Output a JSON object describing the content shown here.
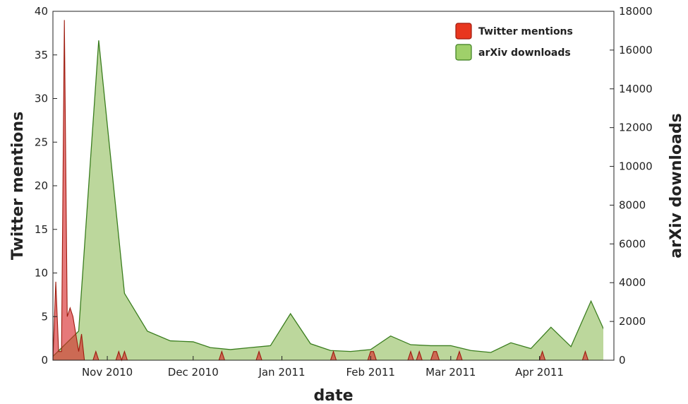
{
  "chart_data": {
    "type": "area",
    "x_axis": {
      "label": "date",
      "ticks": [
        "2010-11-01",
        "2010-12-01",
        "2011-01-01",
        "2011-02-01",
        "2011-03-01",
        "2011-04-01"
      ],
      "tick_labels": [
        "Nov 2010",
        "Dec 2010",
        "Jan 2011",
        "Feb 2011",
        "Mar 2011",
        "Apr 2011"
      ],
      "range": [
        "2010-10-13",
        "2011-04-27"
      ]
    },
    "y_left": {
      "label": "Twitter mentions",
      "range": [
        0,
        40
      ],
      "ticks": [
        0,
        5,
        10,
        15,
        20,
        25,
        30,
        35,
        40
      ],
      "tick_labels": [
        "0",
        "5",
        "10",
        "15",
        "20",
        "25",
        "30",
        "35",
        "40"
      ]
    },
    "y_right": {
      "label": "arXiv downloads",
      "range": [
        0,
        18000
      ],
      "ticks": [
        0,
        2000,
        4000,
        6000,
        8000,
        10000,
        12000,
        14000,
        16000,
        18000
      ],
      "tick_labels": [
        "0",
        "2000",
        "4000",
        "6000",
        "8000",
        "10000",
        "12000",
        "14000",
        "16000",
        "18000"
      ]
    },
    "legend": {
      "position": "top-right",
      "entries": [
        "Twitter mentions",
        "arXiv downloads"
      ]
    },
    "grid": false,
    "series": [
      {
        "name": "Twitter mentions",
        "axis": "left",
        "color": "#d62728",
        "points": [
          [
            "2010-10-13",
            0
          ],
          [
            "2010-10-14",
            9
          ],
          [
            "2010-10-15",
            1
          ],
          [
            "2010-10-16",
            1
          ],
          [
            "2010-10-17",
            39
          ],
          [
            "2010-10-18",
            5
          ],
          [
            "2010-10-19",
            6
          ],
          [
            "2010-10-20",
            5
          ],
          [
            "2010-10-21",
            3
          ],
          [
            "2010-10-22",
            1
          ],
          [
            "2010-10-23",
            3
          ],
          [
            "2010-10-24",
            0
          ],
          [
            "2010-10-27",
            0
          ],
          [
            "2010-10-28",
            1
          ],
          [
            "2010-10-29",
            0
          ],
          [
            "2010-11-04",
            0
          ],
          [
            "2010-11-05",
            1
          ],
          [
            "2010-11-06",
            0
          ],
          [
            "2010-11-07",
            1
          ],
          [
            "2010-11-08",
            0
          ],
          [
            "2010-12-10",
            0
          ],
          [
            "2010-12-11",
            1
          ],
          [
            "2010-12-12",
            0
          ],
          [
            "2010-12-23",
            0
          ],
          [
            "2010-12-24",
            1
          ],
          [
            "2010-12-25",
            0
          ],
          [
            "2011-01-18",
            0
          ],
          [
            "2011-01-19",
            1
          ],
          [
            "2011-01-20",
            0
          ],
          [
            "2011-01-31",
            0
          ],
          [
            "2011-02-01",
            1
          ],
          [
            "2011-02-02",
            1
          ],
          [
            "2011-02-03",
            0
          ],
          [
            "2011-02-14",
            0
          ],
          [
            "2011-02-15",
            1
          ],
          [
            "2011-02-16",
            0
          ],
          [
            "2011-02-17",
            0
          ],
          [
            "2011-02-18",
            1
          ],
          [
            "2011-02-19",
            0
          ],
          [
            "2011-02-22",
            0
          ],
          [
            "2011-02-23",
            1
          ],
          [
            "2011-02-24",
            1
          ],
          [
            "2011-02-25",
            0
          ],
          [
            "2011-03-03",
            0
          ],
          [
            "2011-03-04",
            1
          ],
          [
            "2011-03-05",
            0
          ],
          [
            "2011-04-01",
            0
          ],
          [
            "2011-04-02",
            1
          ],
          [
            "2011-04-03",
            0
          ],
          [
            "2011-04-16",
            0
          ],
          [
            "2011-04-17",
            1
          ],
          [
            "2011-04-18",
            0
          ]
        ]
      },
      {
        "name": "arXiv downloads",
        "axis": "right",
        "color": "#8fbc5a",
        "points": [
          [
            "2010-10-13",
            200
          ],
          [
            "2010-10-22",
            1500
          ],
          [
            "2010-10-29",
            16500
          ],
          [
            "2010-11-07",
            3450
          ],
          [
            "2010-11-15",
            1500
          ],
          [
            "2010-11-23",
            1000
          ],
          [
            "2010-12-01",
            950
          ],
          [
            "2010-12-07",
            650
          ],
          [
            "2010-12-14",
            550
          ],
          [
            "2010-12-21",
            650
          ],
          [
            "2010-12-28",
            750
          ],
          [
            "2011-01-04",
            2400
          ],
          [
            "2011-01-11",
            850
          ],
          [
            "2011-01-18",
            500
          ],
          [
            "2011-01-25",
            450
          ],
          [
            "2011-02-01",
            550
          ],
          [
            "2011-02-08",
            1250
          ],
          [
            "2011-02-15",
            800
          ],
          [
            "2011-02-22",
            750
          ],
          [
            "2011-03-01",
            750
          ],
          [
            "2011-03-08",
            500
          ],
          [
            "2011-03-15",
            400
          ],
          [
            "2011-03-22",
            900
          ],
          [
            "2011-03-29",
            600
          ],
          [
            "2011-04-05",
            1700
          ],
          [
            "2011-04-12",
            700
          ],
          [
            "2011-04-19",
            3050
          ],
          [
            "2011-04-26",
            750
          ],
          [
            "2011-05-03",
            600
          ]
        ]
      }
    ]
  }
}
